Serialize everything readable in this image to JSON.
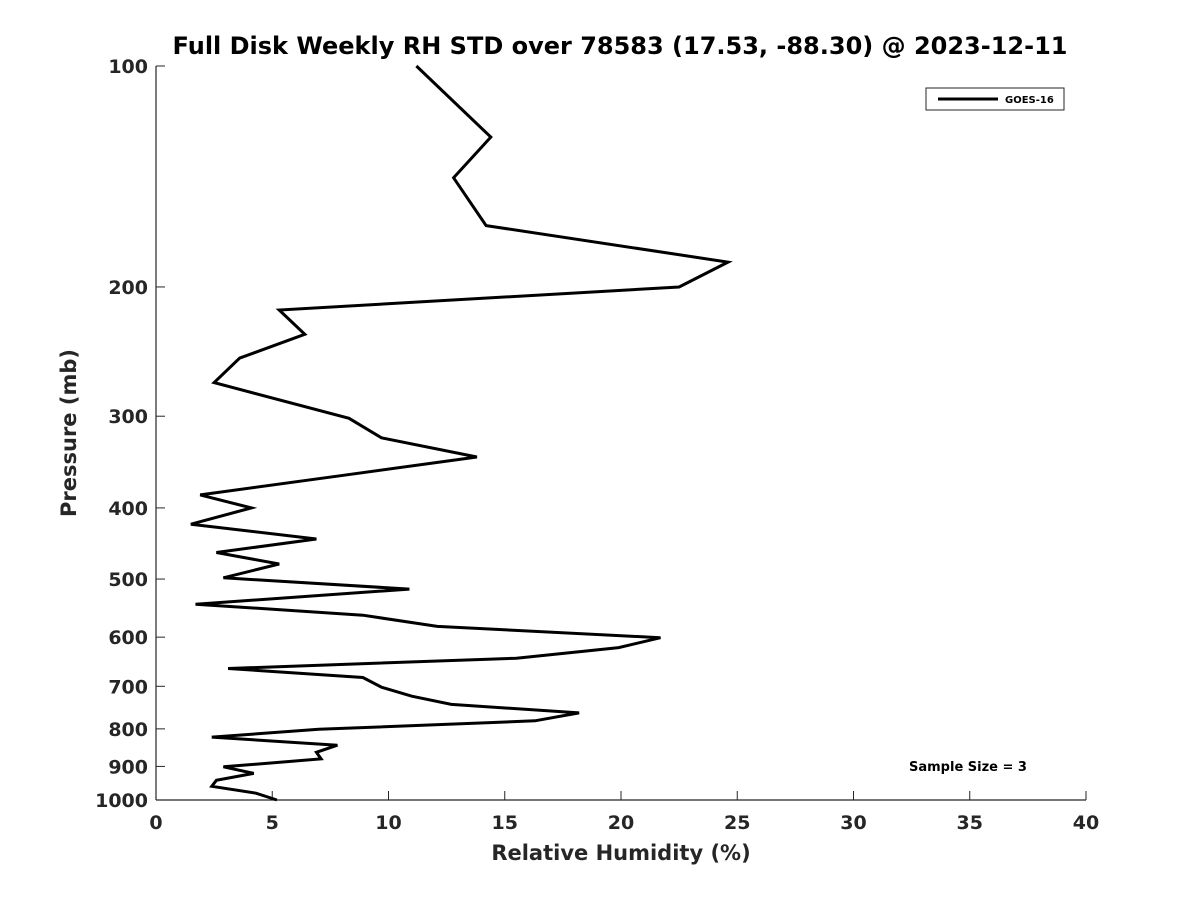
{
  "chart_data": {
    "type": "line",
    "title": "Full Disk Weekly RH STD over 78583 (17.53, -88.30) @ 2023-12-11",
    "xlabel": "Relative Humidity (%)",
    "ylabel": "Pressure (mb)",
    "xlim": [
      0,
      40
    ],
    "ylim": [
      100,
      1000
    ],
    "yscale": "log",
    "yreversed": true,
    "xticks": [
      0,
      5,
      10,
      15,
      20,
      25,
      30,
      35,
      40
    ],
    "yticks": [
      100,
      200,
      300,
      400,
      500,
      600,
      700,
      800,
      900,
      1000
    ],
    "grid": false,
    "legend": {
      "location": "top-right",
      "entries": [
        "GOES-16"
      ]
    },
    "annotation": "Sample Size = 3",
    "series": [
      {
        "name": "GOES-16",
        "color": "#000000",
        "points": [
          [
            11.2,
            100
          ],
          [
            14.4,
            125
          ],
          [
            12.8,
            142
          ],
          [
            14.2,
            165
          ],
          [
            24.6,
            185
          ],
          [
            22.5,
            200
          ],
          [
            5.3,
            215
          ],
          [
            6.4,
            232
          ],
          [
            3.6,
            250
          ],
          [
            2.5,
            270
          ],
          [
            8.3,
            302
          ],
          [
            9.7,
            321
          ],
          [
            13.8,
            341
          ],
          [
            8.1,
            361
          ],
          [
            1.9,
            384
          ],
          [
            4.1,
            400
          ],
          [
            1.5,
            421
          ],
          [
            6.9,
            441
          ],
          [
            2.6,
            460
          ],
          [
            5.3,
            477
          ],
          [
            2.9,
            498
          ],
          [
            10.9,
            516
          ],
          [
            1.7,
            541
          ],
          [
            8.9,
            560
          ],
          [
            12.1,
            580
          ],
          [
            21.7,
            601
          ],
          [
            19.9,
            620
          ],
          [
            15.5,
            641
          ],
          [
            3.1,
            662
          ],
          [
            8.9,
            681
          ],
          [
            9.7,
            702
          ],
          [
            11.0,
            722
          ],
          [
            12.7,
            741
          ],
          [
            18.2,
            761
          ],
          [
            16.3,
            780
          ],
          [
            7.0,
            801
          ],
          [
            2.4,
            821
          ],
          [
            7.8,
            842
          ],
          [
            6.9,
            861
          ],
          [
            7.1,
            879
          ],
          [
            2.9,
            901
          ],
          [
            4.2,
            920
          ],
          [
            2.6,
            940
          ],
          [
            2.4,
            958
          ],
          [
            4.3,
            979
          ],
          [
            5.2,
            1000
          ]
        ]
      }
    ]
  }
}
